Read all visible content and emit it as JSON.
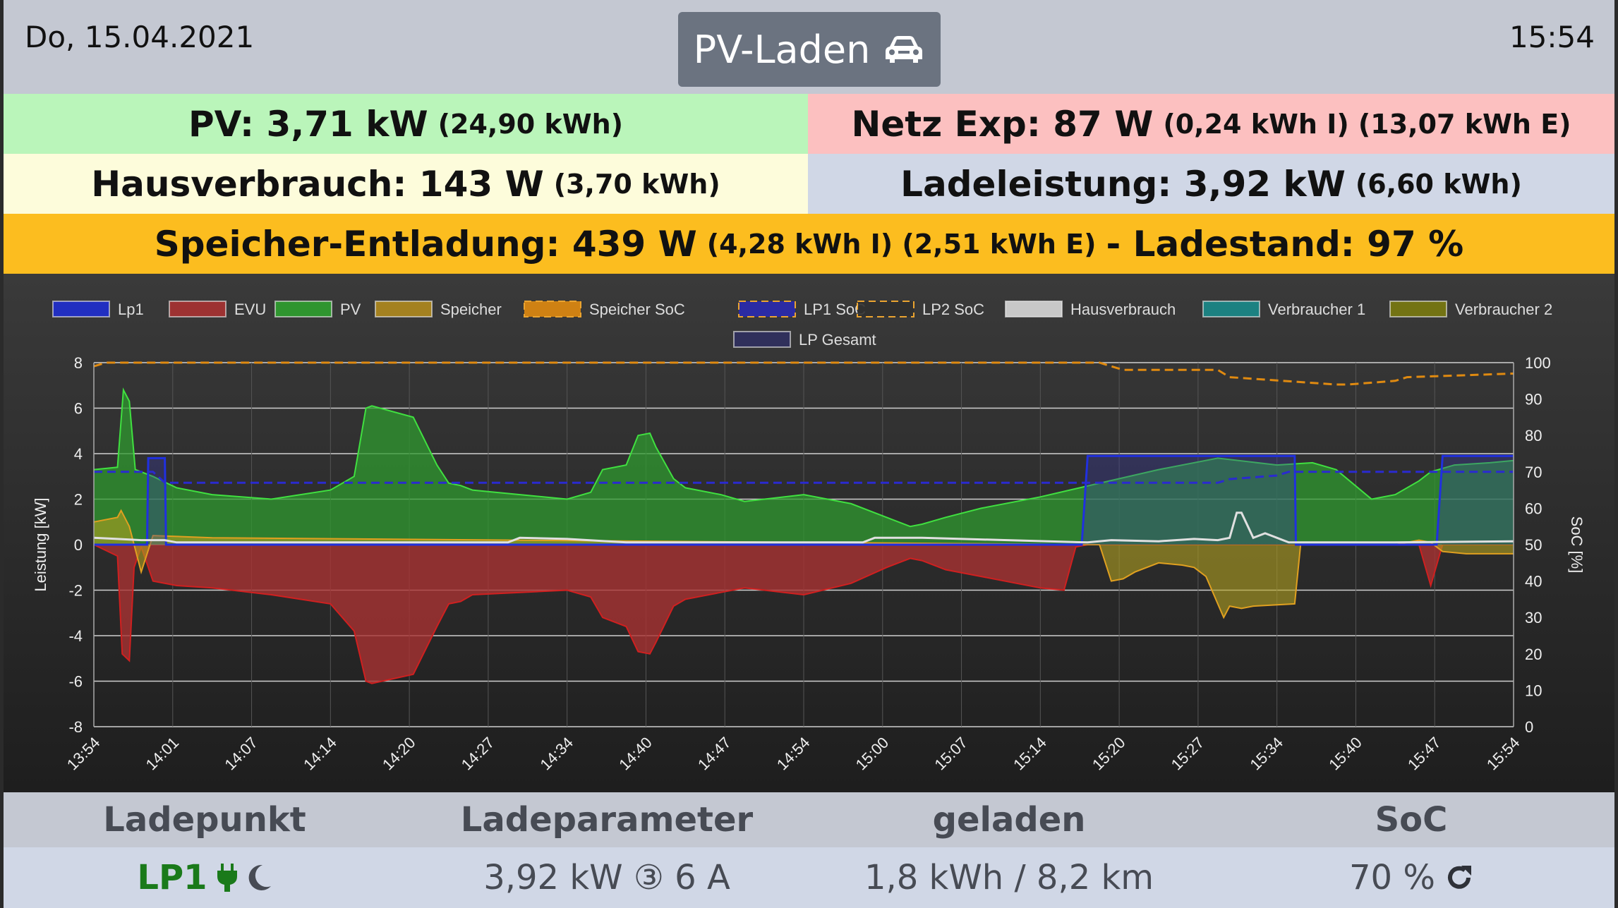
{
  "header": {
    "date": "Do, 15.04.2021",
    "mode_label": "PV-Laden",
    "mode_icon": "car-icon",
    "time": "15:54"
  },
  "info": {
    "pv_main": "PV: 3,71 kW",
    "pv_sub": "(24,90 kWh)",
    "netz_main": "Netz Exp: 87 W",
    "netz_sub": "(0,24 kWh I) (13,07 kWh E)",
    "haus_main": "Hausverbrauch: 143 W",
    "haus_sub": "(3,70 kWh)",
    "lade_main": "Ladeleistung: 3,92 kW",
    "lade_sub": "(6,60 kWh)",
    "speicher_main": "Speicher-Entladung: 439 W",
    "speicher_sub": "(4,28 kWh I) (2,51 kWh E)",
    "speicher_tail": "- Ladestand: 97 %"
  },
  "colors": {
    "pv_bg": "#baf5ba",
    "netz_bg": "#fcc0c0",
    "haus_bg": "#fdfcdb",
    "lade_bg": "#d0d7e6",
    "speicher_bg": "#fcbd1f",
    "header_bg": "#c4c8d2"
  },
  "chart_data": {
    "type": "line",
    "legend": [
      {
        "name": "Lp1",
        "color": "#1f2fd0"
      },
      {
        "name": "EVU",
        "color": "#a83232"
      },
      {
        "name": "PV",
        "color": "#2fa02f"
      },
      {
        "name": "Speicher",
        "color": "#b08a1e"
      },
      {
        "name": "Speicher SoC",
        "color": "#e08a10"
      },
      {
        "name": "LP1 SoC",
        "color": "#2a2ab0"
      },
      {
        "name": "LP2 SoC",
        "color": "#303030"
      },
      {
        "name": "Hausverbrauch",
        "color": "#d8d8d8"
      },
      {
        "name": "Verbraucher 1",
        "color": "#1a8a8a"
      },
      {
        "name": "Verbraucher 2",
        "color": "#7a7a10"
      },
      {
        "name": "LP Gesamt",
        "color": "#303060"
      }
    ],
    "ylabel": "Leistung [kW]",
    "y2label": "SoC [%]",
    "ylim": [
      -8,
      8
    ],
    "y_ticks": [
      "8",
      "6",
      "4",
      "2",
      "0",
      "-2",
      "-4",
      "-6",
      "-8"
    ],
    "y2lim": [
      0,
      100
    ],
    "y2_ticks": [
      "100",
      "90",
      "80",
      "70",
      "60",
      "50",
      "40",
      "30",
      "20",
      "10",
      "0"
    ],
    "x_ticks": [
      "13:54",
      "14:01",
      "14:07",
      "14:14",
      "14:20",
      "14:27",
      "14:34",
      "14:40",
      "14:47",
      "14:54",
      "15:00",
      "15:07",
      "15:14",
      "15:20",
      "15:27",
      "15:34",
      "15:40",
      "15:47",
      "15:54"
    ],
    "x_minutes": [
      0,
      120
    ],
    "series": [
      {
        "name": "PV",
        "x": [
          0,
          2,
          2.5,
          3,
          3.5,
          5,
          7,
          10,
          15,
          20,
          22,
          23,
          23.5,
          27,
          29,
          30,
          31,
          32,
          40,
          42,
          43,
          45,
          46,
          47,
          47.5,
          49,
          50,
          53,
          55,
          60,
          64,
          67,
          69,
          70,
          72,
          75,
          80,
          85,
          90,
          95,
          100,
          103,
          105,
          108,
          110,
          112,
          113,
          115,
          118,
          120
        ],
        "values": [
          3.3,
          3.4,
          6.8,
          6.3,
          3.3,
          3.0,
          2.5,
          2.2,
          2.0,
          2.4,
          3.0,
          6.0,
          6.1,
          5.6,
          3.5,
          2.7,
          2.6,
          2.4,
          2.0,
          2.3,
          3.3,
          3.5,
          4.8,
          4.9,
          4.3,
          2.9,
          2.5,
          2.2,
          1.9,
          2.2,
          1.8,
          1.2,
          0.8,
          0.9,
          1.2,
          1.6,
          2.1,
          2.7,
          3.3,
          3.8,
          3.5,
          3.6,
          3.3,
          2.0,
          2.2,
          2.8,
          3.2,
          3.5,
          3.6,
          3.7
        ]
      },
      {
        "name": "EVU",
        "x": [
          0,
          2,
          2.4,
          3,
          3.4,
          4,
          5,
          7,
          10,
          15,
          20,
          22,
          23,
          23.5,
          27,
          29,
          30,
          31,
          32,
          40,
          42,
          43,
          45,
          46,
          47,
          47.5,
          49,
          50,
          53,
          55,
          60,
          64,
          67,
          69,
          70,
          72,
          75,
          80,
          82,
          83,
          84,
          85,
          101.5,
          110,
          112,
          113,
          114,
          120
        ],
        "values": [
          0,
          -0.5,
          -4.8,
          -5.1,
          -1.0,
          -0.1,
          -1.6,
          -1.8,
          -1.9,
          -2.2,
          -2.6,
          -3.8,
          -6.0,
          -6.1,
          -5.7,
          -3.6,
          -2.6,
          -2.5,
          -2.2,
          -2.0,
          -2.3,
          -3.2,
          -3.6,
          -4.7,
          -4.8,
          -4.3,
          -2.7,
          -2.4,
          -2.1,
          -1.9,
          -2.2,
          -1.7,
          -1.0,
          -0.6,
          -0.7,
          -1.1,
          -1.4,
          -1.9,
          -2.0,
          -0.1,
          0,
          0,
          0,
          0,
          0,
          -1.8,
          0,
          0
        ]
      },
      {
        "name": "Speicher",
        "x": [
          0,
          2,
          2.3,
          3,
          4,
          5,
          10,
          85,
          86,
          87,
          88,
          90,
          92,
          93,
          94,
          95,
          95.5,
          96,
          97,
          98,
          101.5,
          102,
          110,
          112,
          113,
          114,
          116,
          120
        ],
        "values": [
          1.0,
          1.2,
          1.5,
          0.8,
          -1.2,
          0.4,
          0.3,
          0,
          -1.6,
          -1.5,
          -1.2,
          -0.8,
          -0.9,
          -1.0,
          -1.4,
          -2.6,
          -3.2,
          -2.7,
          -2.8,
          -2.7,
          -2.6,
          0,
          0,
          0.2,
          0.1,
          -0.3,
          -0.4,
          -0.4
        ]
      },
      {
        "name": "Lp1",
        "x": [
          0,
          4.5,
          4.6,
          6,
          6.1,
          83.5,
          84,
          101.5,
          101.6,
          113.5,
          114,
          120
        ],
        "values": [
          0,
          0,
          3.8,
          3.8,
          0,
          0,
          3.9,
          3.9,
          0,
          0,
          3.9,
          3.9
        ]
      },
      {
        "name": "Hausverbrauch",
        "x": [
          0,
          2,
          4,
          6,
          7,
          20,
          30,
          35,
          36,
          40,
          45,
          55,
          65,
          66,
          70,
          84,
          86,
          90,
          93,
          95,
          96,
          96.6,
          97,
          98,
          99,
          100,
          101,
          110,
          120
        ],
        "values": [
          0.3,
          0.25,
          0.2,
          0.2,
          0.1,
          0.1,
          0.1,
          0.1,
          0.3,
          0.25,
          0.1,
          0.1,
          0.1,
          0.3,
          0.3,
          0.1,
          0.2,
          0.15,
          0.25,
          0.2,
          0.3,
          1.4,
          1.4,
          0.3,
          0.5,
          0.3,
          0.1,
          0.1,
          0.15
        ]
      },
      {
        "name": "Speicher SoC",
        "x": [
          0,
          1,
          12,
          13,
          85,
          86,
          87,
          95,
          96,
          105,
          106,
          110,
          111,
          120
        ],
        "values": [
          99,
          100,
          100,
          100,
          100,
          99,
          98,
          98,
          96,
          94,
          94,
          95,
          96,
          97
        ]
      },
      {
        "name": "LP1 SoC",
        "x": [
          0,
          5,
          6,
          95,
          96,
          100,
          101,
          120
        ],
        "values": [
          70,
          70,
          67,
          67,
          68,
          69,
          70,
          70
        ]
      }
    ]
  },
  "table": {
    "headers": [
      "Ladepunkt",
      "Ladeparameter",
      "geladen",
      "SoC"
    ],
    "row": {
      "ladepunkt": "LP1",
      "ladeparameter": "3,92 kW ③ 6 A",
      "geladen": "1,8 kWh / 8,2 km",
      "soc": "70 %"
    }
  }
}
